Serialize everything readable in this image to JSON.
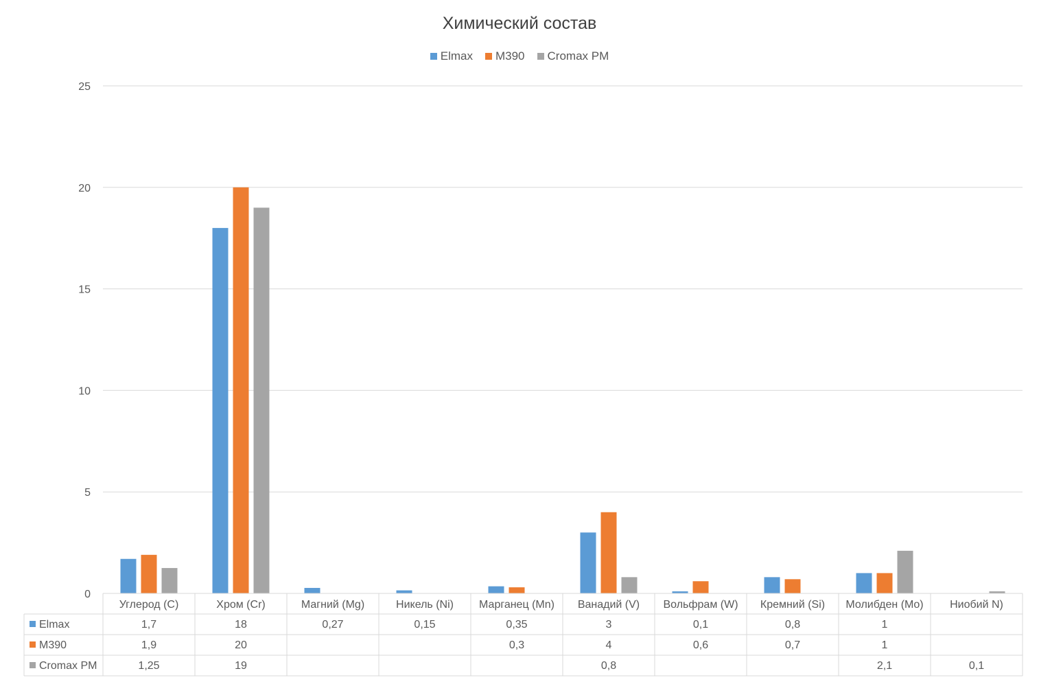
{
  "chart_data": {
    "type": "bar",
    "title": "Химический состав",
    "categories": [
      "Углерод (C)",
      "Хром (Cr)",
      "Магний (Mg)",
      "Никель (Ni)",
      "Марганец (Mn)",
      "Ванадий (V)",
      "Вольфрам (W)",
      "Кремний (Si)",
      "Молибден (Mo)",
      "Ниобий N)"
    ],
    "series": [
      {
        "name": "Elmax",
        "color": "#5b9bd5",
        "values": [
          1.7,
          18,
          0.27,
          0.15,
          0.35,
          3,
          0.1,
          0.8,
          1,
          null
        ],
        "labels": [
          "1,7",
          "18",
          "0,27",
          "0,15",
          "0,35",
          "3",
          "0,1",
          "0,8",
          "1",
          ""
        ]
      },
      {
        "name": "M390",
        "color": "#ed7d31",
        "values": [
          1.9,
          20,
          null,
          null,
          0.3,
          4,
          0.6,
          0.7,
          1,
          null
        ],
        "labels": [
          "1,9",
          "20",
          "",
          "",
          "0,3",
          "4",
          "0,6",
          "0,7",
          "1",
          ""
        ]
      },
      {
        "name": "Cromax PM",
        "color": "#a5a5a5",
        "values": [
          1.25,
          19,
          null,
          null,
          null,
          0.8,
          null,
          null,
          2.1,
          0.1
        ],
        "labels": [
          "1,25",
          "19",
          "",
          "",
          "",
          "0,8",
          "",
          "",
          "2,1",
          "0,1"
        ]
      }
    ],
    "yticks": [
      "0",
      "5",
      "10",
      "15",
      "20",
      "25"
    ],
    "ylim": [
      0,
      25
    ],
    "grid": true,
    "legend": "top-center",
    "data_table": true
  }
}
